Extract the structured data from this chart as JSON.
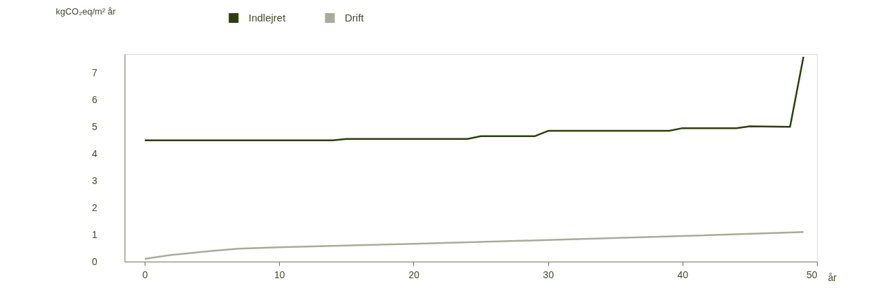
{
  "chart_data": {
    "type": "line",
    "ylabel": "kgCO₂eq/m² år",
    "xlabel": "år",
    "xlim": [
      -1.5,
      50
    ],
    "xticks": [
      0,
      10,
      20,
      30,
      40,
      50
    ],
    "ylim": [
      0,
      7.7
    ],
    "yticks": [
      0,
      1,
      2,
      3,
      4,
      5,
      6,
      7
    ],
    "grid": false,
    "legend": "top left",
    "marker": "none",
    "line_style": "solid",
    "series": [
      {
        "name": "Indlejret",
        "color": "#2b3f0b",
        "x": [
          0,
          14,
          15,
          24,
          25,
          29,
          30,
          39,
          40,
          44,
          45,
          48,
          49
        ],
        "values": [
          4.5,
          4.5,
          4.55,
          4.55,
          4.65,
          4.65,
          4.85,
          4.85,
          4.95,
          4.95,
          5.02,
          5.0,
          7.6
        ]
      },
      {
        "name": "Drift",
        "color": "#a9ab98",
        "x": [
          0,
          2,
          5,
          7,
          10,
          20,
          30,
          40,
          49
        ],
        "values": [
          0.1,
          0.25,
          0.4,
          0.48,
          0.53,
          0.66,
          0.8,
          0.95,
          1.1
        ]
      }
    ]
  }
}
